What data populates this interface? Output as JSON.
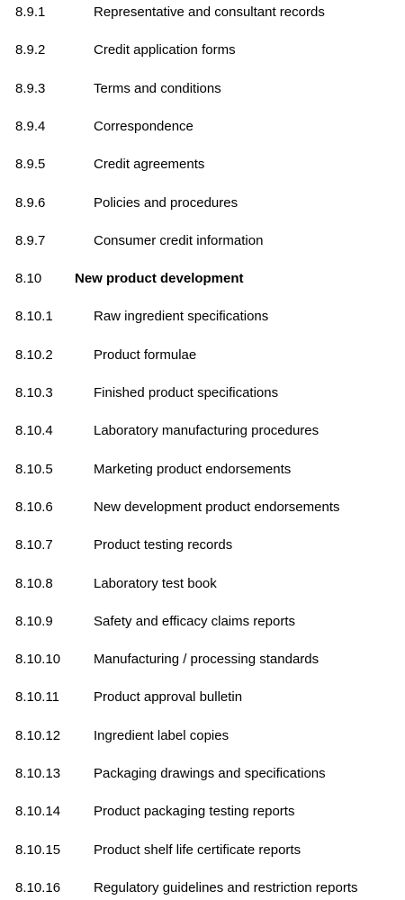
{
  "document": {
    "rows": [
      {
        "number": "8.9.1",
        "label": "Representative and consultant records",
        "heading": false
      },
      {
        "number": "8.9.2",
        "label": "Credit application forms",
        "heading": false
      },
      {
        "number": "8.9.3",
        "label": "Terms and conditions",
        "heading": false
      },
      {
        "number": "8.9.4",
        "label": "Correspondence",
        "heading": false
      },
      {
        "number": "8.9.5",
        "label": "Credit agreements",
        "heading": false
      },
      {
        "number": "8.9.6",
        "label": "Policies and procedures",
        "heading": false
      },
      {
        "number": "8.9.7",
        "label": "Consumer credit information",
        "heading": false
      },
      {
        "number": "8.10",
        "label": "New product development",
        "heading": true
      },
      {
        "number": "8.10.1",
        "label": "Raw ingredient specifications",
        "heading": false
      },
      {
        "number": "8.10.2",
        "label": "Product formulae",
        "heading": false
      },
      {
        "number": "8.10.3",
        "label": "Finished product specifications",
        "heading": false
      },
      {
        "number": "8.10.4",
        "label": "Laboratory manufacturing procedures",
        "heading": false
      },
      {
        "number": "8.10.5",
        "label": "Marketing product endorsements",
        "heading": false
      },
      {
        "number": "8.10.6",
        "label": "New development product endorsements",
        "heading": false
      },
      {
        "number": "8.10.7",
        "label": "Product testing records",
        "heading": false
      },
      {
        "number": "8.10.8",
        "label": "Laboratory test book",
        "heading": false
      },
      {
        "number": "8.10.9",
        "label": "Safety and efficacy claims reports",
        "heading": false
      },
      {
        "number": "8.10.10",
        "label": "Manufacturing / processing standards",
        "heading": false
      },
      {
        "number": "8.10.11",
        "label": "Product approval bulletin",
        "heading": false
      },
      {
        "number": "8.10.12",
        "label": "Ingredient label copies",
        "heading": false
      },
      {
        "number": "8.10.13",
        "label": "Packaging drawings and specifications",
        "heading": false
      },
      {
        "number": "8.10.14",
        "label": "Product packaging testing reports",
        "heading": false
      },
      {
        "number": "8.10.15",
        "label": "Product shelf life certificate reports",
        "heading": false
      },
      {
        "number": "8.10.16",
        "label": "Regulatory guidelines and restriction reports",
        "heading": false
      }
    ]
  }
}
